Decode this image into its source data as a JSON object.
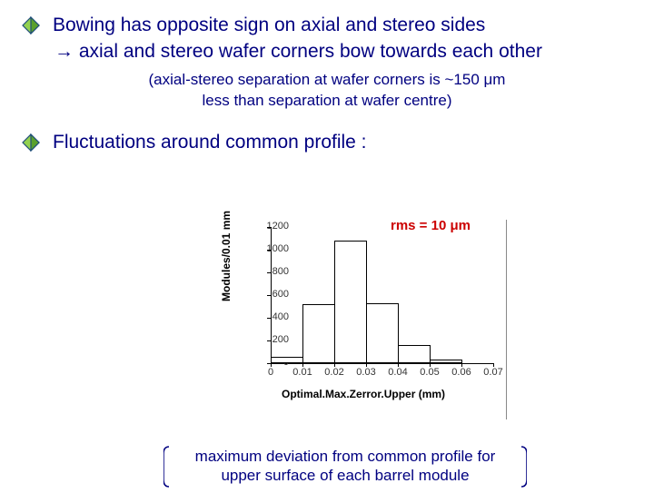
{
  "bullets": {
    "b1_line1": "Bowing has opposite sign on axial and stereo sides",
    "b1_line2": "→ axial and stereo wafer corners bow towards each other",
    "b1_paren_l1": "(axial-stereo separation at wafer corners is ~150 μm",
    "b1_paren_l2": "less than separation at wafer centre)",
    "b2": "Fluctuations around common profile :"
  },
  "rms_label": "rms = 10 μm",
  "chart": {
    "type": "histogram",
    "ylabel": "Modules/0.01 mm",
    "xlabel": "Optimal.Max.Zerror.Upper (mm)",
    "ylim": [
      0,
      1200
    ],
    "ytick_step": 200,
    "yticks": [
      0,
      200,
      400,
      600,
      800,
      1000,
      1200
    ],
    "xticks": [
      "0",
      "0.01",
      "0.02",
      "0.03",
      "0.04",
      "0.05",
      "0.06",
      "0.07"
    ],
    "x_bin_width": 0.01,
    "bars": [
      {
        "x0": 0.0,
        "x1": 0.01,
        "value": 60
      },
      {
        "x0": 0.01,
        "x1": 0.02,
        "value": 520
      },
      {
        "x0": 0.02,
        "x1": 0.03,
        "value": 1080
      },
      {
        "x0": 0.03,
        "x1": 0.04,
        "value": 530
      },
      {
        "x0": 0.04,
        "x1": 0.05,
        "value": 160
      },
      {
        "x0": 0.05,
        "x1": 0.06,
        "value": 30
      }
    ],
    "bar_fill": "#ffffff",
    "bar_border": "#000000",
    "axis_color": "#000000",
    "background": "#ffffff",
    "font_family": "Arial",
    "ytick_fontsize": 11,
    "xtick_fontsize": 11,
    "label_fontsize": 12,
    "label_fontweight": "bold"
  },
  "bottom_note": {
    "l1": "maximum deviation from common profile for",
    "l2": "upper surface of each barrel module"
  },
  "colors": {
    "text_main": "#000080",
    "rms": "#cc0000",
    "diamond_fill1": "#93d150",
    "diamond_fill2": "#5aa02c",
    "diamond_border": "#1f4e79",
    "bracket": "#000080"
  }
}
